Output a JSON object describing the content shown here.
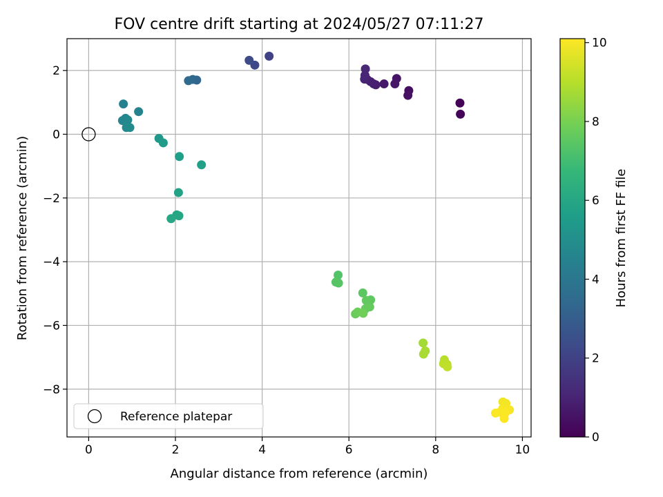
{
  "chart_data": {
    "type": "scatter",
    "title": "FOV centre drift starting at 2024/05/27 07:11:27",
    "xlabel": "Angular distance from reference (arcmin)",
    "ylabel": "Rotation from reference (arcmin)",
    "xlim": [
      -0.5,
      10.2
    ],
    "ylim": [
      -9.5,
      3.0
    ],
    "xticks": [
      0,
      2,
      4,
      6,
      8,
      10
    ],
    "yticks": [
      -8,
      -6,
      -4,
      -2,
      0,
      2
    ],
    "xtick_labels": [
      "0",
      "2",
      "4",
      "6",
      "8",
      "10"
    ],
    "ytick_labels": [
      "−8",
      "−6",
      "−4",
      "−2",
      "0",
      "2"
    ],
    "grid": true,
    "legend": {
      "position": "lower-left",
      "entries": [
        {
          "label": "Reference platepar",
          "marker": "open-circle"
        }
      ]
    },
    "reference_point": {
      "x": 0,
      "y": 0
    },
    "colorbar": {
      "label": "Hours from first FF file",
      "colormap": "viridis",
      "range": [
        0,
        10.1
      ],
      "ticks": [
        0,
        2,
        4,
        6,
        8,
        10
      ],
      "tick_labels": [
        "0",
        "2",
        "4",
        "6",
        "8",
        "10"
      ],
      "stops": [
        "#440154",
        "#482878",
        "#3e4989",
        "#31688e",
        "#26828e",
        "#1f9e89",
        "#35b779",
        "#6ece58",
        "#b5de2b",
        "#fde725"
      ]
    },
    "points": [
      {
        "x": 8.56,
        "y": 0.98,
        "h": 0.05
      },
      {
        "x": 8.57,
        "y": 0.63,
        "h": 0.1
      },
      {
        "x": 7.38,
        "y": 1.37,
        "h": 0.4
      },
      {
        "x": 7.36,
        "y": 1.22,
        "h": 0.45
      },
      {
        "x": 7.1,
        "y": 1.75,
        "h": 0.55
      },
      {
        "x": 7.06,
        "y": 1.58,
        "h": 0.6
      },
      {
        "x": 6.81,
        "y": 1.58,
        "h": 0.7
      },
      {
        "x": 6.62,
        "y": 1.55,
        "h": 0.8
      },
      {
        "x": 6.57,
        "y": 1.58,
        "h": 0.85
      },
      {
        "x": 6.5,
        "y": 1.65,
        "h": 0.9
      },
      {
        "x": 6.42,
        "y": 1.72,
        "h": 0.95
      },
      {
        "x": 6.36,
        "y": 1.73,
        "h": 1.0
      },
      {
        "x": 6.37,
        "y": 1.85,
        "h": 1.05
      },
      {
        "x": 6.38,
        "y": 2.05,
        "h": 1.1
      },
      {
        "x": 4.16,
        "y": 2.45,
        "h": 2.0
      },
      {
        "x": 3.83,
        "y": 2.17,
        "h": 2.2
      },
      {
        "x": 3.7,
        "y": 2.32,
        "h": 2.3
      },
      {
        "x": 2.49,
        "y": 1.7,
        "h": 3.3
      },
      {
        "x": 2.4,
        "y": 1.72,
        "h": 3.4
      },
      {
        "x": 2.3,
        "y": 1.68,
        "h": 3.5
      },
      {
        "x": 0.8,
        "y": 0.95,
        "h": 4.4
      },
      {
        "x": 1.15,
        "y": 0.71,
        "h": 4.5
      },
      {
        "x": 0.85,
        "y": 0.5,
        "h": 4.6
      },
      {
        "x": 0.78,
        "y": 0.43,
        "h": 4.7
      },
      {
        "x": 0.9,
        "y": 0.45,
        "h": 4.75
      },
      {
        "x": 0.87,
        "y": 0.21,
        "h": 4.8
      },
      {
        "x": 0.95,
        "y": 0.21,
        "h": 4.85
      },
      {
        "x": 1.62,
        "y": -0.13,
        "h": 5.4
      },
      {
        "x": 1.72,
        "y": -0.27,
        "h": 5.5
      },
      {
        "x": 2.09,
        "y": -0.7,
        "h": 5.6
      },
      {
        "x": 2.6,
        "y": -0.96,
        "h": 5.7
      },
      {
        "x": 2.07,
        "y": -1.83,
        "h": 5.8
      },
      {
        "x": 2.03,
        "y": -2.53,
        "h": 5.9
      },
      {
        "x": 2.08,
        "y": -2.56,
        "h": 5.95
      },
      {
        "x": 1.9,
        "y": -2.65,
        "h": 6.0
      },
      {
        "x": 5.75,
        "y": -4.42,
        "h": 7.3
      },
      {
        "x": 5.7,
        "y": -4.64,
        "h": 7.35
      },
      {
        "x": 5.76,
        "y": -4.67,
        "h": 7.4
      },
      {
        "x": 6.32,
        "y": -4.98,
        "h": 7.5
      },
      {
        "x": 6.5,
        "y": -5.2,
        "h": 7.55
      },
      {
        "x": 6.4,
        "y": -5.22,
        "h": 7.6
      },
      {
        "x": 6.48,
        "y": -5.42,
        "h": 7.65
      },
      {
        "x": 6.38,
        "y": -5.48,
        "h": 7.7
      },
      {
        "x": 6.15,
        "y": -5.64,
        "h": 7.75
      },
      {
        "x": 6.2,
        "y": -5.58,
        "h": 7.8
      },
      {
        "x": 6.33,
        "y": -5.62,
        "h": 7.85
      },
      {
        "x": 7.71,
        "y": -6.55,
        "h": 8.7
      },
      {
        "x": 7.76,
        "y": -6.8,
        "h": 8.75
      },
      {
        "x": 7.72,
        "y": -6.9,
        "h": 8.8
      },
      {
        "x": 8.2,
        "y": -7.08,
        "h": 9.0
      },
      {
        "x": 8.26,
        "y": -7.22,
        "h": 9.05
      },
      {
        "x": 8.18,
        "y": -7.2,
        "h": 9.1
      },
      {
        "x": 8.27,
        "y": -7.3,
        "h": 9.15
      },
      {
        "x": 9.55,
        "y": -8.4,
        "h": 9.9
      },
      {
        "x": 9.62,
        "y": -8.45,
        "h": 9.95
      },
      {
        "x": 9.55,
        "y": -8.6,
        "h": 10.0
      },
      {
        "x": 9.7,
        "y": -8.65,
        "h": 10.02
      },
      {
        "x": 9.48,
        "y": -8.72,
        "h": 10.04
      },
      {
        "x": 9.38,
        "y": -8.75,
        "h": 10.06
      },
      {
        "x": 9.6,
        "y": -8.75,
        "h": 10.08
      },
      {
        "x": 9.58,
        "y": -8.92,
        "h": 10.1
      }
    ]
  }
}
